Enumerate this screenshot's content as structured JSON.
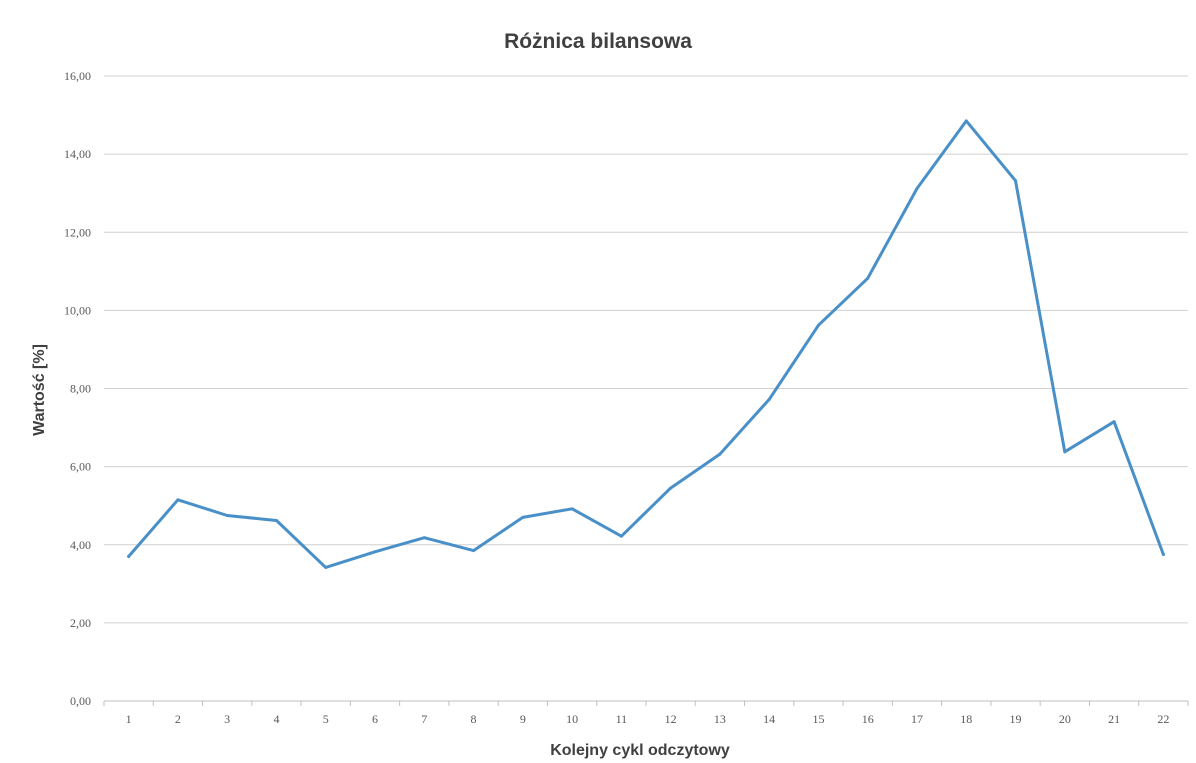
{
  "chart_data": {
    "type": "line",
    "title": "Różnica bilansowa",
    "xlabel": "Kolejny cykl odczytowy",
    "ylabel": "Wartość [%]",
    "categories": [
      "1",
      "2",
      "3",
      "4",
      "5",
      "6",
      "7",
      "8",
      "9",
      "10",
      "11",
      "12",
      "13",
      "14",
      "15",
      "16",
      "17",
      "18",
      "19",
      "20",
      "21",
      "22"
    ],
    "ylim": [
      0,
      16
    ],
    "yticks": [
      "0,00",
      "2,00",
      "4,00",
      "6,00",
      "8,00",
      "10,00",
      "12,00",
      "14,00",
      "16,00"
    ],
    "grid": true,
    "legend": "none",
    "series": [
      {
        "color": "#4a90c8",
        "values": [
          3.7,
          5.15,
          4.75,
          4.62,
          3.42,
          3.82,
          4.18,
          3.85,
          4.7,
          4.92,
          4.22,
          5.45,
          6.32,
          7.72,
          9.62,
          10.82,
          13.12,
          14.85,
          13.32,
          6.38,
          7.15,
          3.75
        ]
      }
    ]
  }
}
